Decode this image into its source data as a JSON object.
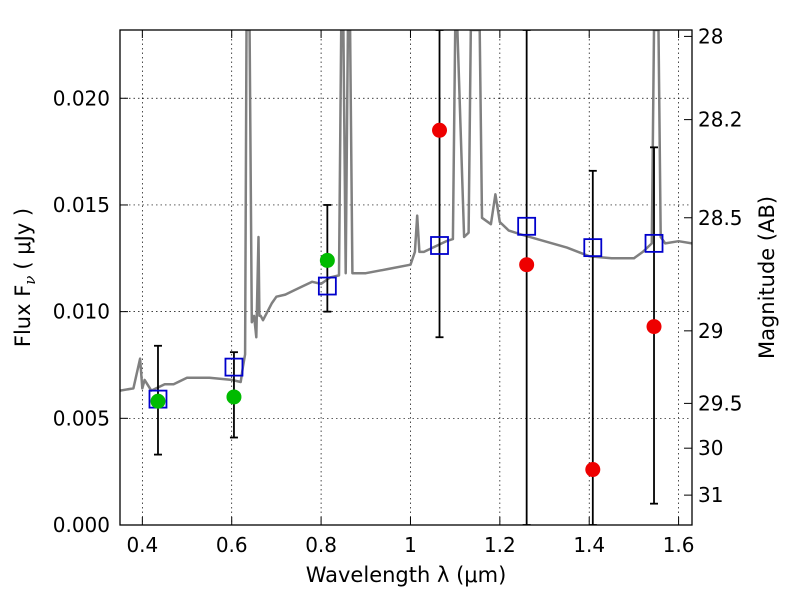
{
  "chart_data": {
    "type": "scatter",
    "xlabel": "Wavelength  λ (μm)",
    "ylabel": "Flux  F",
    "ylabel_sub": "ν",
    "ylabel_unit": "( μJy )",
    "y2label": "Magnitude (AB)",
    "xlim": [
      0.35,
      1.63
    ],
    "ylim": [
      0.0,
      0.0232
    ],
    "grid": true,
    "x_ticks": [
      0.4,
      0.6,
      0.8,
      1.0,
      1.2,
      1.4,
      1.6
    ],
    "x_tick_labels": [
      "0.4",
      "0.6",
      "0.8",
      "1",
      "1.2",
      "1.4",
      "1.6"
    ],
    "y_ticks": [
      0.0,
      0.005,
      0.01,
      0.015,
      0.02
    ],
    "y_tick_labels": [
      "0.000",
      "0.005",
      "0.010",
      "0.015",
      "0.020"
    ],
    "y2_ticks": [
      {
        "flux": 0.0229,
        "label": "28"
      },
      {
        "flux": 0.019,
        "label": "28.2"
      },
      {
        "flux": 0.0144,
        "label": "28.5"
      },
      {
        "flux": 0.0091,
        "label": "29"
      },
      {
        "flux": 0.0057,
        "label": "29.5"
      },
      {
        "flux": 0.0036,
        "label": "30"
      },
      {
        "flux": 0.0014,
        "label": "31"
      }
    ],
    "series": [
      {
        "kind": "spectrum",
        "color": "#808080",
        "x": [
          0.35,
          0.38,
          0.395,
          0.4,
          0.405,
          0.42,
          0.45,
          0.47,
          0.5,
          0.55,
          0.6,
          0.62,
          0.625,
          0.63,
          0.633,
          0.636,
          0.64,
          0.645,
          0.65,
          0.655,
          0.66,
          0.662,
          0.665,
          0.67,
          0.68,
          0.69,
          0.7,
          0.72,
          0.74,
          0.76,
          0.78,
          0.8,
          0.82,
          0.84,
          0.845,
          0.85,
          0.855,
          0.86,
          0.865,
          0.87,
          0.9,
          0.95,
          1.0,
          1.01,
          1.015,
          1.02,
          1.03,
          1.05,
          1.08,
          1.095,
          1.1,
          1.105,
          1.12,
          1.13,
          1.135,
          1.14,
          1.145,
          1.15,
          1.155,
          1.16,
          1.18,
          1.19,
          1.2,
          1.22,
          1.25,
          1.3,
          1.35,
          1.4,
          1.45,
          1.48,
          1.5,
          1.52,
          1.54,
          1.545,
          1.55,
          1.555,
          1.56,
          1.57,
          1.6,
          1.63
        ],
        "y": [
          0.0063,
          0.0064,
          0.0078,
          0.0064,
          0.0068,
          0.0063,
          0.0066,
          0.0066,
          0.0069,
          0.0069,
          0.0068,
          0.0067,
          0.0074,
          0.008,
          0.0232,
          0.0232,
          0.0232,
          0.0095,
          0.0098,
          0.0088,
          0.0135,
          0.0098,
          0.0098,
          0.0096,
          0.01,
          0.0104,
          0.0107,
          0.0108,
          0.011,
          0.0112,
          0.0114,
          0.0113,
          0.0116,
          0.0117,
          0.0232,
          0.0232,
          0.0118,
          0.0232,
          0.0232,
          0.0118,
          0.0118,
          0.012,
          0.0122,
          0.0128,
          0.0145,
          0.0128,
          0.0128,
          0.013,
          0.0133,
          0.0134,
          0.0232,
          0.0232,
          0.0135,
          0.0137,
          0.0232,
          0.0232,
          0.0232,
          0.0232,
          0.0232,
          0.0144,
          0.0141,
          0.0155,
          0.0142,
          0.0138,
          0.0136,
          0.0133,
          0.013,
          0.0126,
          0.0125,
          0.0125,
          0.0125,
          0.0128,
          0.0132,
          0.0232,
          0.0232,
          0.0232,
          0.0135,
          0.0132,
          0.0133,
          0.0132
        ]
      },
      {
        "kind": "points",
        "color": "#00bb00",
        "x": [
          0.435,
          0.605,
          0.814
        ],
        "y": [
          0.0058,
          0.006,
          0.0124
        ]
      },
      {
        "kind": "points",
        "color": "#ee0000",
        "x": [
          1.065,
          1.26,
          1.408,
          1.545
        ],
        "y": [
          0.0185,
          0.0122,
          0.0026,
          0.0093
        ]
      },
      {
        "kind": "squares",
        "color": "#0000cc",
        "x": [
          0.435,
          0.605,
          0.814,
          1.065,
          1.26,
          1.408,
          1.545
        ],
        "y": [
          0.0059,
          0.0074,
          0.0112,
          0.0131,
          0.014,
          0.013,
          0.0132
        ]
      },
      {
        "kind": "errorbars",
        "color": "#000000",
        "x": [
          0.435,
          0.605,
          0.814,
          1.065,
          1.26,
          1.408,
          1.545
        ],
        "ylow": [
          0.0033,
          0.0041,
          0.01,
          0.0088,
          0.0,
          0.0,
          0.001
        ],
        "yhigh": [
          0.0084,
          0.0081,
          0.015,
          0.0232,
          0.0232,
          0.0166,
          0.0177
        ]
      }
    ]
  }
}
